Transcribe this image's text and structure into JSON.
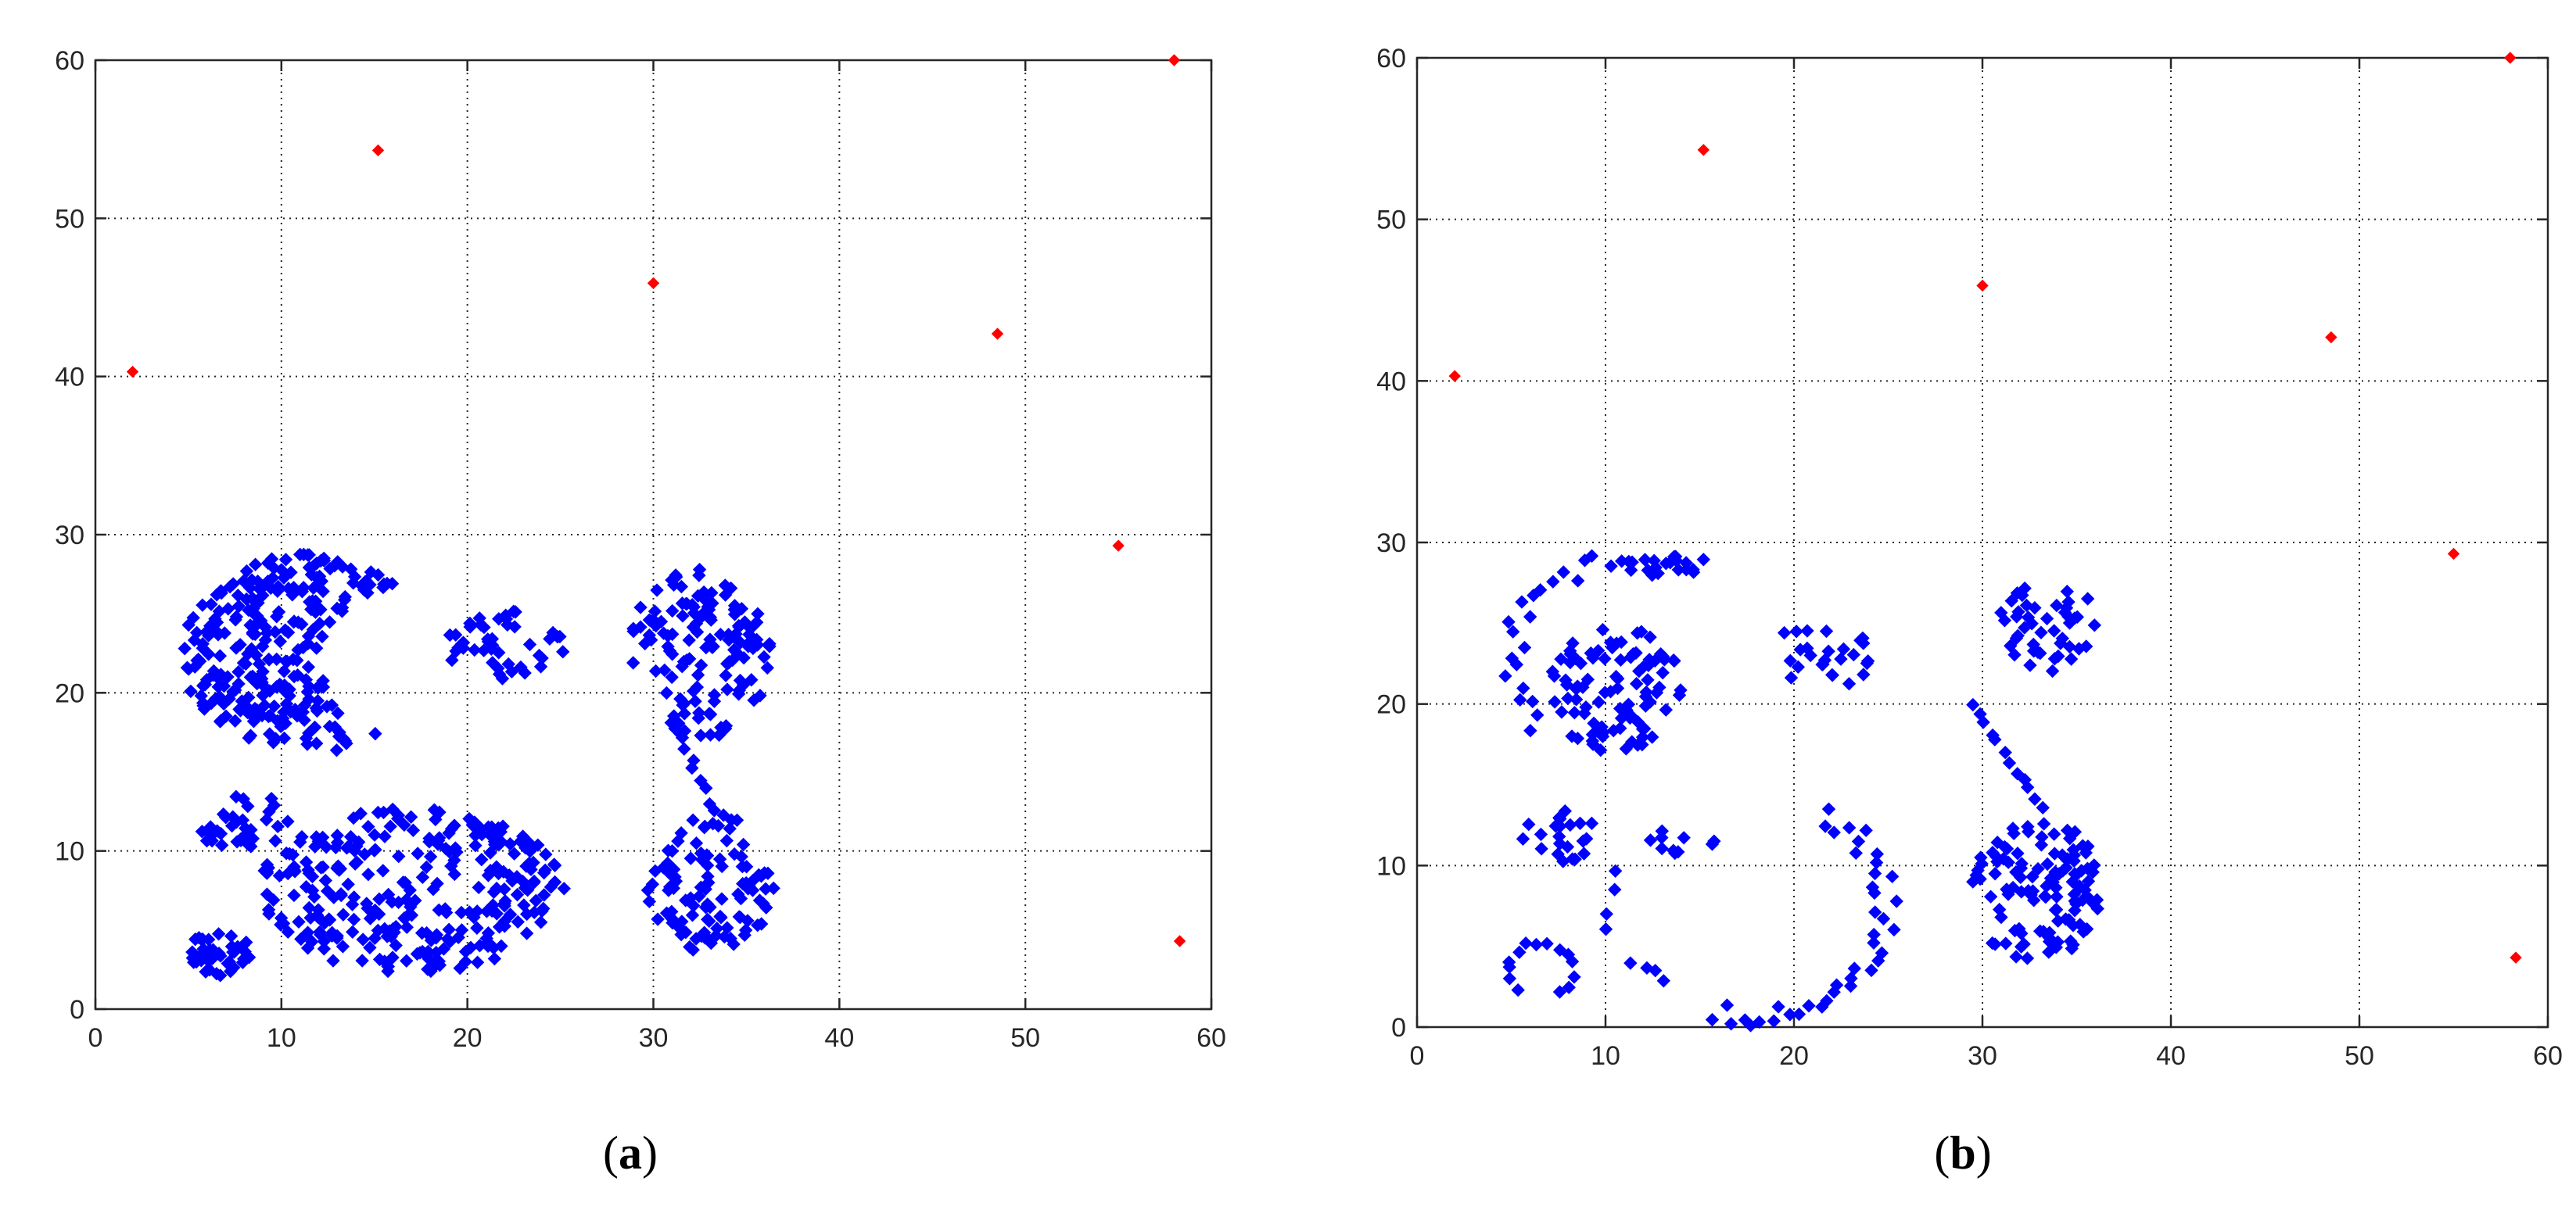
{
  "colors": {
    "background": "#ffffff",
    "axes": "#262626",
    "grid": "#262626",
    "sensor_marker": "#0000ff",
    "anchor_marker": "#ff0000"
  },
  "chart_data": [
    {
      "type": "scatter",
      "caption_letter": "a",
      "xlabel": "",
      "ylabel": "",
      "xlim": [
        0,
        60
      ],
      "ylim": [
        0,
        60
      ],
      "xticks": [
        "0",
        "10",
        "20",
        "30",
        "40",
        "50",
        "60"
      ],
      "yticks": [
        "0",
        "10",
        "20",
        "30",
        "40",
        "50",
        "60"
      ],
      "grid": true,
      "grid_style": "dotted",
      "legend": "none",
      "series": [
        {
          "color": "#0000ff",
          "marker": "diamond",
          "clusters": [
            {
              "shape": "ellipse",
              "cx": 17.0,
              "cy": 7.5,
              "rx": 8.2,
              "ry": 5.2,
              "count": 300
            },
            {
              "shape": "ellipse",
              "cx": 33.0,
              "cy": 8.0,
              "rx": 3.5,
              "ry": 4.5,
              "count": 110
            },
            {
              "shape": "ellipse",
              "cx": 32.5,
              "cy": 22.5,
              "rx": 3.8,
              "ry": 5.5,
              "count": 140
            },
            {
              "shape": "ellipse",
              "cx": 22.0,
              "cy": 23.0,
              "rx": 3.2,
              "ry": 2.2,
              "count": 45
            },
            {
              "shape": "crescent",
              "cx": 11.5,
              "cy": 22.5,
              "rx": 7.0,
              "ry": 6.3,
              "cut_cx": 17.0,
              "cut_cy": 22.0,
              "cut_r": 4.8,
              "count": 280
            },
            {
              "shape": "ellipse",
              "cx": 8.0,
              "cy": 11.8,
              "rx": 2.8,
              "ry": 1.8,
              "count": 35
            },
            {
              "shape": "ellipse",
              "cx": 6.6,
              "cy": 3.4,
              "rx": 1.9,
              "ry": 1.4,
              "count": 40
            },
            {
              "shape": "line",
              "x1": 31.5,
              "y1": 17.0,
              "x2": 33.2,
              "y2": 12.5,
              "count": 8
            }
          ]
        },
        {
          "color": "#ff0000",
          "marker": "diamond",
          "points": [
            [
              2.0,
              40.3
            ],
            [
              15.2,
              54.3
            ],
            [
              30.0,
              45.9
            ],
            [
              48.5,
              42.7
            ],
            [
              55.0,
              29.3
            ],
            [
              58.0,
              60.0
            ],
            [
              58.3,
              4.3
            ]
          ]
        }
      ]
    },
    {
      "type": "scatter",
      "caption_letter": "b",
      "xlabel": "",
      "ylabel": "",
      "xlim": [
        0,
        60
      ],
      "ylim": [
        0,
        60
      ],
      "xticks": [
        "0",
        "10",
        "20",
        "30",
        "40",
        "50",
        "60"
      ],
      "yticks": [
        "0",
        "10",
        "20",
        "30",
        "40",
        "50",
        "60"
      ],
      "grid": true,
      "grid_style": "dotted",
      "legend": "none",
      "series": [
        {
          "color": "#0000ff",
          "marker": "diamond",
          "clusters": [
            {
              "shape": "ellipse",
              "cx": 10.5,
              "cy": 21.0,
              "rx": 3.5,
              "ry": 4.0,
              "count": 95
            },
            {
              "shape": "arc",
              "cx": 11.5,
              "cy": 22.5,
              "r": 6.5,
              "from_deg": 60,
              "to_deg": 220,
              "count": 28
            },
            {
              "shape": "ellipse",
              "cx": 13.0,
              "cy": 28.5,
              "rx": 2.8,
              "ry": 0.8,
              "count": 14
            },
            {
              "shape": "ellipse",
              "cx": 21.5,
              "cy": 23.0,
              "rx": 3.0,
              "ry": 2.0,
              "count": 26
            },
            {
              "shape": "ellipse",
              "cx": 33.5,
              "cy": 25.0,
              "rx": 2.6,
              "ry": 3.2,
              "count": 45
            },
            {
              "shape": "line",
              "x1": 29.5,
              "y1": 20.0,
              "x2": 33.2,
              "y2": 13.5,
              "count": 12
            },
            {
              "shape": "ellipse",
              "cx": 32.8,
              "cy": 8.5,
              "rx": 3.5,
              "ry": 4.5,
              "count": 120
            },
            {
              "shape": "ellipse",
              "cx": 7.5,
              "cy": 11.8,
              "rx": 2.5,
              "ry": 1.6,
              "count": 22
            },
            {
              "shape": "ellipse",
              "cx": 14.0,
              "cy": 11.5,
              "rx": 1.8,
              "ry": 1.0,
              "count": 10
            },
            {
              "shape": "arc",
              "cx": 6.6,
              "cy": 3.6,
              "r": 1.7,
              "from_deg": -60,
              "to_deg": 240,
              "count": 14
            },
            {
              "shape": "arc",
              "cx": 18.0,
              "cy": 7.5,
              "r": 6.8,
              "from_deg": -110,
              "to_deg": 60,
              "count": 40
            },
            {
              "shape": "line",
              "x1": 10.0,
              "y1": 6.0,
              "x2": 10.5,
              "y2": 9.5,
              "count": 4
            },
            {
              "shape": "line",
              "x1": 11.5,
              "y1": 4.0,
              "x2": 13.0,
              "y2": 3.0,
              "count": 4
            }
          ]
        },
        {
          "color": "#ff0000",
          "marker": "diamond",
          "points": [
            [
              2.0,
              40.3
            ],
            [
              15.2,
              54.3
            ],
            [
              30.0,
              45.9
            ],
            [
              48.5,
              42.7
            ],
            [
              55.0,
              29.3
            ],
            [
              58.0,
              60.0
            ],
            [
              58.3,
              4.3
            ]
          ]
        }
      ]
    }
  ]
}
